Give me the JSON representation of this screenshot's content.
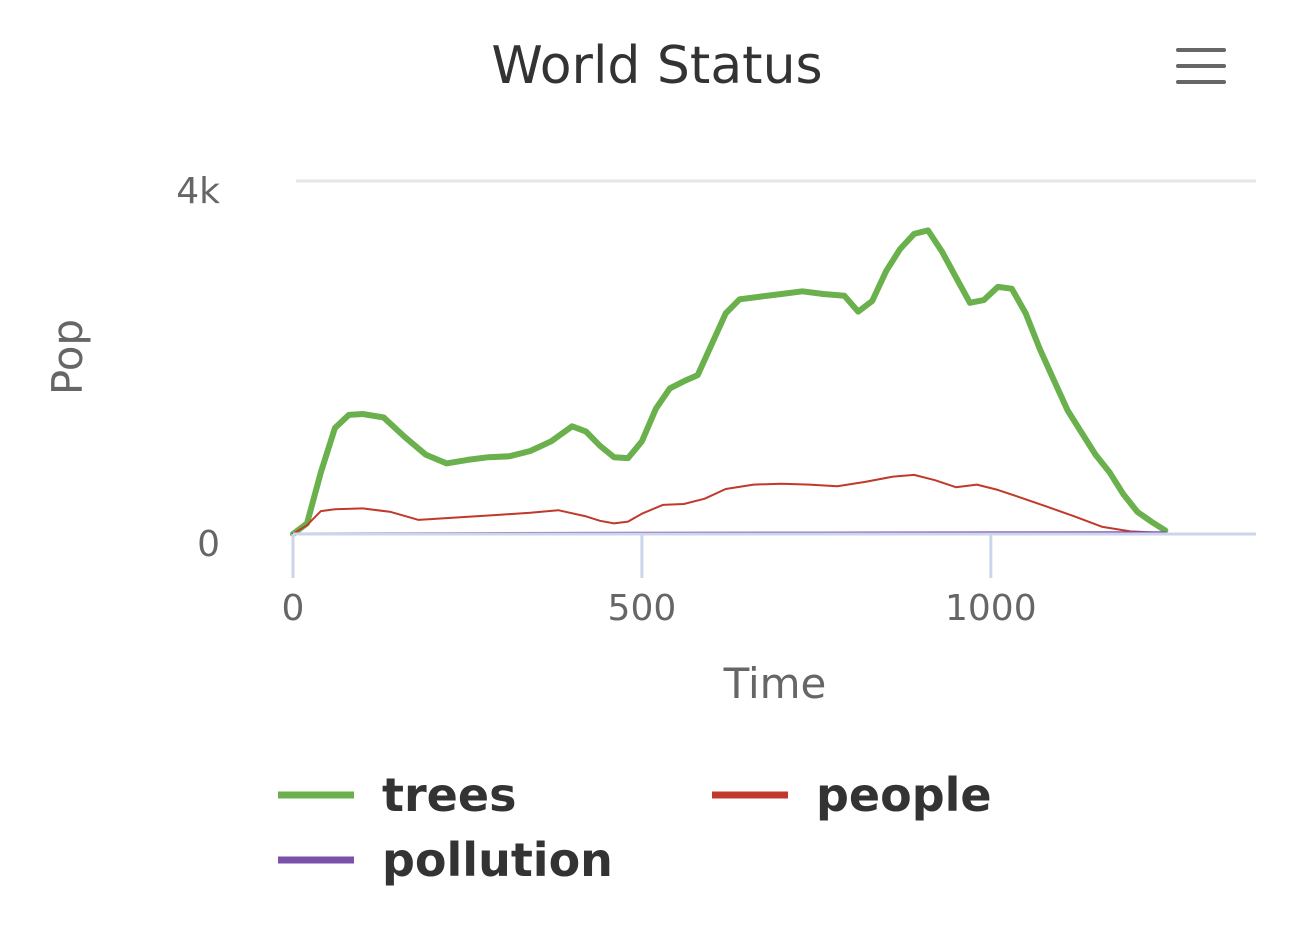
{
  "menu_icon": "hamburger-menu-icon",
  "chart_data": {
    "type": "line",
    "title": "World Status",
    "xlabel": "Time",
    "ylabel": "Pop",
    "xlim": [
      0,
      1380
    ],
    "ylim": [
      0,
      4000
    ],
    "x_ticks": [
      0,
      500,
      1000
    ],
    "x_tick_labels": [
      "0",
      "500",
      "1000"
    ],
    "y_ticks": [
      0,
      4000
    ],
    "y_tick_labels": [
      "0",
      "4k"
    ],
    "grid": true,
    "legend_position": "bottom",
    "series": [
      {
        "name": "trees",
        "color": "#6ab04c",
        "x": [
          0,
          20,
          40,
          60,
          80,
          100,
          130,
          160,
          190,
          220,
          250,
          280,
          310,
          340,
          370,
          400,
          420,
          440,
          460,
          480,
          500,
          520,
          540,
          560,
          580,
          600,
          620,
          640,
          670,
          700,
          730,
          760,
          790,
          810,
          830,
          850,
          870,
          890,
          910,
          930,
          950,
          970,
          990,
          1010,
          1030,
          1050,
          1070,
          1090,
          1110,
          1130,
          1150,
          1170,
          1190,
          1210,
          1230,
          1250
        ],
        "y": [
          0,
          120,
          700,
          1200,
          1350,
          1360,
          1320,
          1100,
          900,
          800,
          840,
          870,
          880,
          940,
          1050,
          1220,
          1160,
          1000,
          870,
          860,
          1050,
          1420,
          1650,
          1730,
          1800,
          2150,
          2500,
          2660,
          2690,
          2720,
          2750,
          2720,
          2700,
          2520,
          2640,
          2980,
          3230,
          3400,
          3440,
          3200,
          2910,
          2620,
          2650,
          2800,
          2780,
          2500,
          2100,
          1750,
          1400,
          1150,
          900,
          700,
          450,
          250,
          140,
          40
        ]
      },
      {
        "name": "people",
        "color": "#c0392b",
        "x": [
          0,
          20,
          40,
          60,
          100,
          140,
          180,
          220,
          260,
          300,
          340,
          380,
          420,
          440,
          460,
          480,
          500,
          530,
          560,
          590,
          620,
          660,
          700,
          740,
          780,
          820,
          860,
          890,
          920,
          950,
          980,
          1010,
          1040,
          1080,
          1120,
          1160,
          1200,
          1250
        ],
        "y": [
          0,
          100,
          260,
          280,
          290,
          250,
          160,
          180,
          200,
          220,
          240,
          270,
          200,
          150,
          120,
          140,
          230,
          330,
          340,
          400,
          510,
          560,
          570,
          560,
          540,
          590,
          650,
          670,
          610,
          530,
          560,
          500,
          420,
          310,
          200,
          80,
          30,
          10
        ]
      },
      {
        "name": "pollution",
        "color": "#7b52ab",
        "x": [
          0,
          250,
          500,
          750,
          1000,
          1250
        ],
        "y": [
          0,
          5,
          8,
          10,
          12,
          15
        ]
      }
    ]
  }
}
